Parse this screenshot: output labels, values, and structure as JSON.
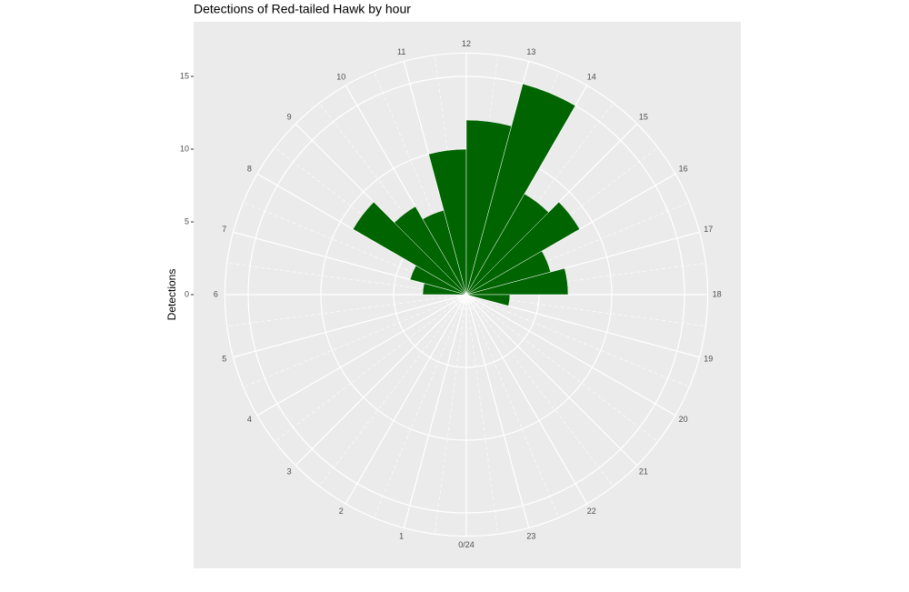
{
  "chart_data": {
    "type": "polar-bar",
    "title": "Detections of Red-tailed Hawk by hour",
    "y_label": "Detections",
    "x": [
      0,
      1,
      2,
      3,
      4,
      5,
      6,
      7,
      8,
      9,
      10,
      11,
      12,
      13,
      14,
      15,
      16,
      17,
      18,
      19,
      20,
      21,
      22,
      23
    ],
    "values": [
      0,
      0,
      0,
      0,
      0,
      0,
      3,
      4,
      9,
      7,
      6,
      10,
      12,
      15,
      8,
      9,
      6,
      7,
      3,
      0,
      0,
      0,
      0,
      0
    ],
    "color": "#006400",
    "xlim": [
      0,
      24
    ],
    "xticks": [
      {
        "value": 0,
        "label": "0/24"
      },
      1,
      2,
      3,
      4,
      5,
      6,
      7,
      8,
      9,
      10,
      11,
      12,
      13,
      14,
      15,
      16,
      17,
      18,
      19,
      20,
      21,
      22,
      23
    ],
    "ylim": [
      0,
      16.6
    ],
    "yticks": [
      0,
      5,
      10,
      15
    ],
    "grid": true
  }
}
